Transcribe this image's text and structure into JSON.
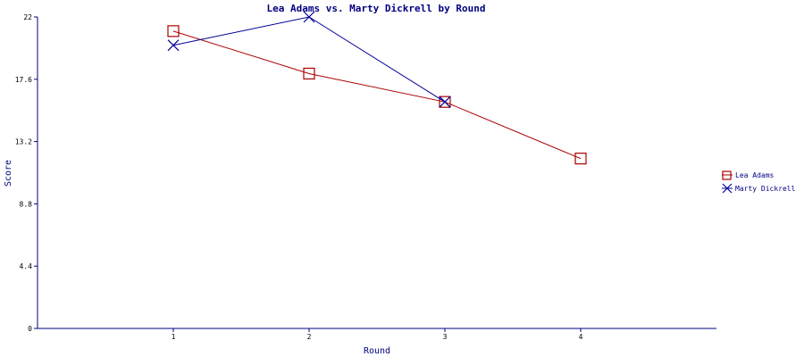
{
  "chart_data": {
    "type": "line",
    "title": "Lea Adams vs. Marty Dickrell by Round",
    "xlabel": "Round",
    "ylabel": "Score",
    "x": [
      1,
      2,
      3,
      4
    ],
    "xlim": [
      0,
      5
    ],
    "ylim": [
      0,
      22
    ],
    "yticks": [
      "0",
      "4.4",
      "8.8",
      "13.2",
      "17.6",
      "22"
    ],
    "xticks": [
      "1",
      "2",
      "3",
      "4"
    ],
    "grid": false,
    "legend_position": "right",
    "series": [
      {
        "name": "Lea Adams",
        "color": "#aa0000",
        "marker": "square",
        "values": [
          21,
          18,
          16,
          12
        ]
      },
      {
        "name": "Marty Dickrell",
        "color": "#000099",
        "marker": "x",
        "values": [
          20,
          22,
          16,
          null
        ]
      }
    ]
  }
}
